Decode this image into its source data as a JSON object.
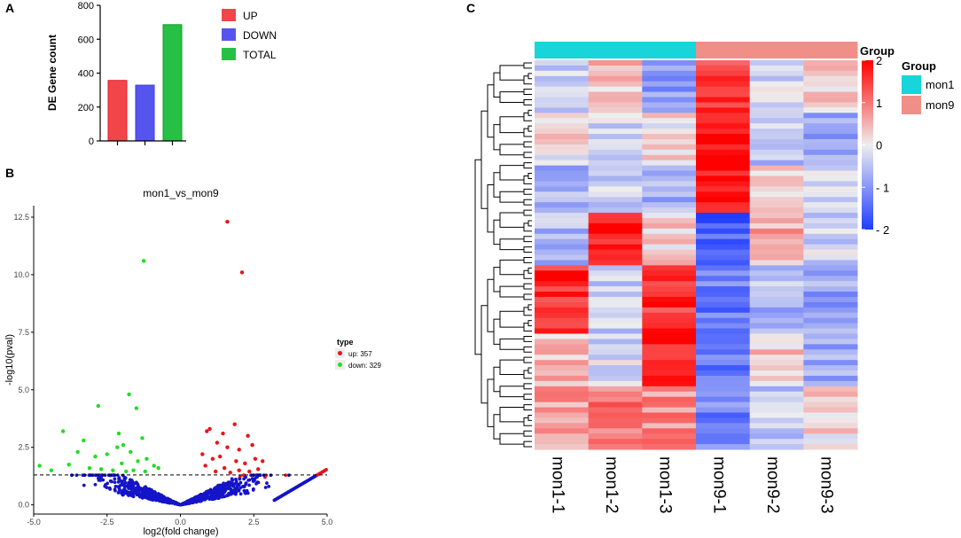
{
  "panel_labels": {
    "a": "A",
    "b": "B",
    "c": "C"
  },
  "chart_data": [
    {
      "type": "bar",
      "title": "",
      "xlabel": "",
      "ylabel": "DE Gene count",
      "categories": [
        "UP",
        "DOWN",
        "TOTAL"
      ],
      "values": [
        357,
        329,
        686
      ],
      "colors": [
        "#f2454a",
        "#5555ee",
        "#27c044"
      ],
      "border_colors": [
        "#e01e28",
        "#3a3aef",
        "#129d2a"
      ],
      "ylim": [
        0,
        800
      ],
      "yticks": [
        "0",
        "200",
        "400",
        "600",
        "800"
      ],
      "legend": [
        {
          "label": "UP",
          "color": "#f2454a"
        },
        {
          "label": "DOWN",
          "color": "#5555ee"
        },
        {
          "label": "TOTAL",
          "color": "#27c044"
        }
      ]
    },
    {
      "type": "scatter",
      "title": "mon1_vs_mon9",
      "xlabel": "log2(fold change)",
      "ylabel": "-log10(pval)",
      "xlim": [
        -5,
        5
      ],
      "ylim": [
        -0.4,
        13
      ],
      "xticks": [
        "-5.0",
        "-2.5",
        "0.0",
        "2.5",
        "5.0"
      ],
      "yticks": [
        "0.0",
        "2.5",
        "5.0",
        "7.5",
        "10.0",
        "12.5"
      ],
      "threshold": 1.3,
      "legend_title": "type",
      "legend": [
        {
          "label": "up: 357",
          "color": "#e8141a"
        },
        {
          "label": "down: 329",
          "color": "#22dd22"
        }
      ],
      "series": [
        {
          "name": "up",
          "color": "#e8141a",
          "points": [
            [
              1.6,
              12.3
            ],
            [
              2.1,
              10.1
            ],
            [
              1.85,
              3.5
            ],
            [
              1.0,
              3.3
            ],
            [
              1.45,
              3.1
            ],
            [
              0.9,
              3.2
            ],
            [
              2.3,
              3.0
            ],
            [
              1.25,
              2.7
            ],
            [
              1.6,
              2.5
            ],
            [
              2.0,
              2.4
            ],
            [
              2.45,
              2.6
            ],
            [
              0.75,
              2.2
            ],
            [
              1.1,
              2.0
            ],
            [
              1.35,
              2.1
            ],
            [
              1.9,
              1.9
            ],
            [
              2.2,
              1.8
            ],
            [
              2.55,
              2.0
            ],
            [
              2.8,
              1.9
            ],
            [
              0.85,
              1.7
            ],
            [
              1.5,
              1.6
            ],
            [
              2.0,
              1.5
            ],
            [
              2.35,
              1.45
            ],
            [
              2.65,
              1.55
            ],
            [
              1.7,
              1.4
            ],
            [
              1.2,
              1.45
            ]
          ]
        },
        {
          "name": "down",
          "color": "#22dd22",
          "points": [
            [
              -1.25,
              10.6
            ],
            [
              -1.75,
              4.8
            ],
            [
              -2.8,
              4.3
            ],
            [
              -1.5,
              4.2
            ],
            [
              -4.0,
              3.2
            ],
            [
              -3.3,
              2.8
            ],
            [
              -2.1,
              3.1
            ],
            [
              -1.3,
              2.9
            ],
            [
              -4.8,
              1.7
            ],
            [
              -4.4,
              1.5
            ],
            [
              -3.5,
              2.3
            ],
            [
              -2.9,
              2.1
            ],
            [
              -2.5,
              2.2
            ],
            [
              -2.0,
              1.8
            ],
            [
              -1.7,
              2.3
            ],
            [
              -1.45,
              1.9
            ],
            [
              -1.15,
              2.0
            ],
            [
              -0.9,
              1.7
            ],
            [
              -3.1,
              1.6
            ],
            [
              -2.7,
              1.55
            ],
            [
              -2.3,
              1.5
            ],
            [
              -1.85,
              1.45
            ],
            [
              -1.6,
              1.5
            ],
            [
              -1.2,
              1.45
            ],
            [
              -0.75,
              1.6
            ],
            [
              -3.8,
              1.75
            ],
            [
              -2.15,
              2.5
            ],
            [
              -1.95,
              2.6
            ]
          ]
        }
      ]
    },
    {
      "type": "heatmap",
      "columns": [
        "mon1-1",
        "mon1-2",
        "mon1-3",
        "mon9-1",
        "mon9-2",
        "mon9-3"
      ],
      "column_groups": [
        "mon1",
        "mon1",
        "mon1",
        "mon9",
        "mon9",
        "mon9"
      ],
      "rows": 74,
      "scale_range": [
        -2,
        2
      ],
      "scale_ticks": [
        "2",
        "1",
        "0",
        "- 1",
        "- 2"
      ],
      "annotation_title": "Group",
      "legend_title": "Group",
      "groups": [
        {
          "label": "mon1",
          "color": "#17d5d9"
        },
        {
          "label": "mon9",
          "color": "#f08f87"
        }
      ],
      "blocks": [
        {
          "rows": 10,
          "values": [
            -0.4,
            0.4,
            -0.9,
            1.5,
            -0.2,
            0.3
          ]
        },
        {
          "rows": 10,
          "values": [
            0.1,
            -0.2,
            0.1,
            2.0,
            -0.5,
            -0.8
          ]
        },
        {
          "rows": 9,
          "values": [
            -0.6,
            -0.3,
            -0.7,
            1.9,
            0.3,
            -0.3
          ]
        },
        {
          "rows": 10,
          "values": [
            -0.6,
            1.8,
            0.2,
            -1.6,
            0.6,
            -0.3
          ]
        },
        {
          "rows": 13,
          "values": [
            1.7,
            -0.3,
            1.6,
            -1.3,
            -0.6,
            -0.8
          ]
        },
        {
          "rows": 10,
          "values": [
            0.4,
            -0.2,
            1.6,
            -1.3,
            0.3,
            -0.7
          ]
        },
        {
          "rows": 12,
          "values": [
            0.7,
            1.0,
            0.8,
            -1.2,
            -0.4,
            0.2
          ]
        }
      ]
    }
  ]
}
